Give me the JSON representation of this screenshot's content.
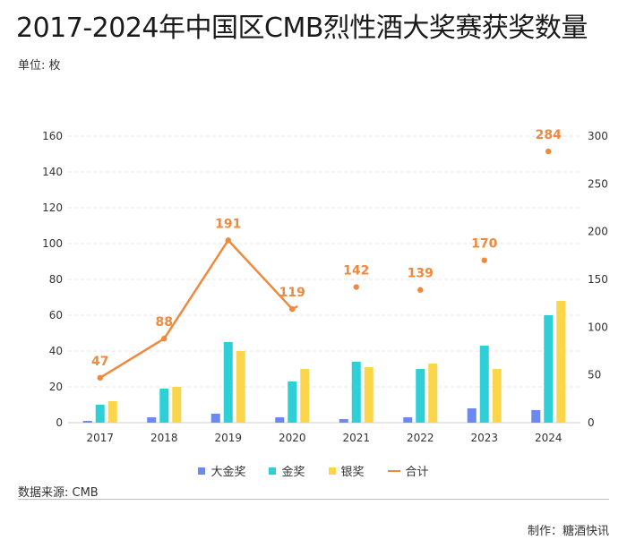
{
  "title": "2017-2024年中国区CMB烈性酒大奖赛获奖数量",
  "unit_label": "单位: 枚",
  "source": "数据来源: CMB",
  "credit": "制作：糖酒快讯",
  "colors": {
    "grand_gold": "#6b8af0",
    "gold": "#2fcfd8",
    "silver": "#fbd54a",
    "total": "#f0883e",
    "axis_text": "#333333",
    "grid": "#e6e6e6"
  },
  "chart_data": {
    "type": "bar",
    "categories": [
      "2017",
      "2018",
      "2019",
      "2020",
      "2021",
      "2022",
      "2023",
      "2024"
    ],
    "series": [
      {
        "name": "大金奖",
        "values": [
          1,
          3,
          5,
          3,
          2,
          3,
          8,
          7
        ],
        "axis": "left"
      },
      {
        "name": "金奖",
        "values": [
          10,
          19,
          45,
          23,
          34,
          30,
          43,
          60
        ],
        "axis": "left"
      },
      {
        "name": "银奖",
        "values": [
          12,
          20,
          40,
          30,
          31,
          33,
          30,
          68
        ],
        "axis": "left"
      }
    ],
    "line_series": {
      "name": "合计",
      "values": [
        47,
        88,
        191,
        119,
        142,
        139,
        170,
        284
      ],
      "axis": "right",
      "connected_segments": [
        [
          0,
          3
        ]
      ]
    },
    "y_left": {
      "min": 0,
      "max": 160,
      "ticks": [
        0,
        20,
        40,
        60,
        80,
        100,
        120,
        140,
        160
      ]
    },
    "y_right": {
      "min": 0,
      "max": 300,
      "ticks": [
        0,
        50,
        100,
        150,
        200,
        250,
        300
      ]
    },
    "legend_position": "bottom-center",
    "grid": true
  }
}
